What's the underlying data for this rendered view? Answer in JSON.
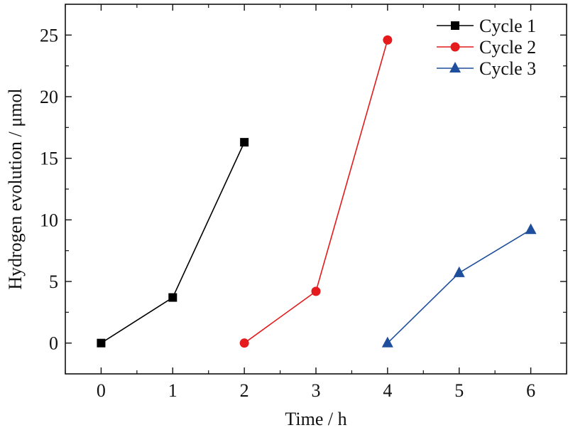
{
  "chart_data": {
    "type": "line",
    "title": "",
    "xlabel": "Time / h",
    "ylabel": "Hydrogen evolution / μmol",
    "xlim": [
      -0.5,
      6.5
    ],
    "ylim": [
      -2.5,
      27.5
    ],
    "x_ticks": [
      0,
      1,
      2,
      3,
      4,
      5,
      6
    ],
    "y_ticks": [
      0,
      5,
      10,
      15,
      20,
      25
    ],
    "grid": false,
    "legend_position": "top-right",
    "series": [
      {
        "name": "Cycle 1",
        "color": "#000000",
        "marker": "square",
        "x": [
          0,
          1,
          2
        ],
        "y": [
          0,
          3.7,
          16.3
        ]
      },
      {
        "name": "Cycle 2",
        "color": "#e41a1c",
        "marker": "circle",
        "x": [
          2,
          3,
          4
        ],
        "y": [
          0,
          4.2,
          24.6
        ]
      },
      {
        "name": "Cycle 3",
        "color": "#1f4e9c",
        "marker": "triangle",
        "x": [
          4,
          5,
          6
        ],
        "y": [
          0,
          5.7,
          9.2
        ]
      }
    ]
  }
}
